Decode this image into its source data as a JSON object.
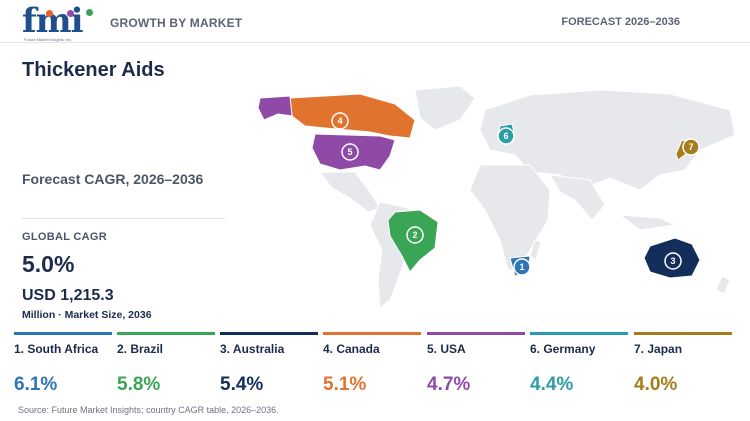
{
  "header": {
    "logo_text": "fmi",
    "logo_subtext": "Future Market Insights, Inc.",
    "left_label": "GROWTH BY MARKET",
    "right_label": "FORECAST 2026–2036"
  },
  "summary": {
    "title": "Thickener Aids",
    "cagr_label": "Forecast CAGR, 2026–2036",
    "global_label": "GLOBAL CAGR",
    "global_value": "5.0%",
    "market_size": "USD 1,215.3",
    "market_note": "Million · Market Size, 2036"
  },
  "countries": [
    {
      "rank": "1",
      "name": "1. South Africa",
      "value": "6.1%",
      "color": "#2e75b6"
    },
    {
      "rank": "2",
      "name": "2. Brazil",
      "value": "5.8%",
      "color": "#3aa655"
    },
    {
      "rank": "3",
      "name": "3. Australia",
      "value": "5.4%",
      "color": "#142e5c"
    },
    {
      "rank": "4",
      "name": "4. Canada",
      "value": "5.1%",
      "color": "#e0732e"
    },
    {
      "rank": "5",
      "name": "5. USA",
      "value": "4.7%",
      "color": "#8e4aa6"
    },
    {
      "rank": "6",
      "name": "6. Germany",
      "value": "4.4%",
      "color": "#2a9ea8"
    },
    {
      "rank": "7",
      "name": "7. Japan",
      "value": "4.0%",
      "color": "#a67c1a"
    }
  ],
  "map": {
    "base_color": "#e6e8eb",
    "markers": [
      "1",
      "2",
      "3",
      "4",
      "5",
      "6",
      "7"
    ]
  },
  "source": "Source: Future Market Insights; country CAGR table, 2026–2036."
}
